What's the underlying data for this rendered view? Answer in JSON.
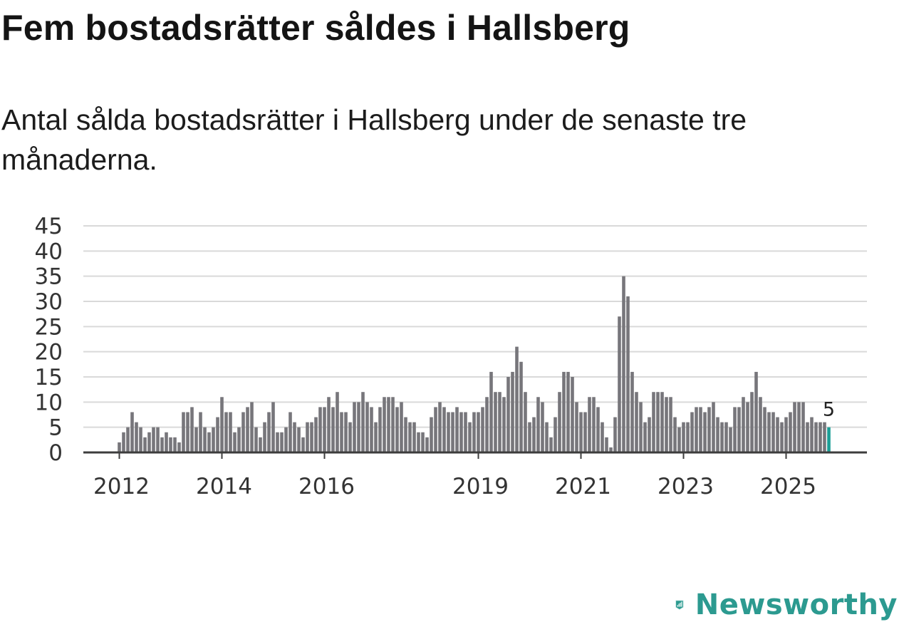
{
  "title": "Fem bostadsrätter såldes i Hallsberg",
  "subtitle": "Antal sålda bostadsrätter i Hallsberg under de senaste tre månaderna.",
  "brand": {
    "name": "Newsworthy",
    "color": "#2c9a90"
  },
  "colors": {
    "bar": "#77767b",
    "highlight": "#1a9e96",
    "grid": "#d9d9d9"
  },
  "chart_data": {
    "type": "bar",
    "title": "Fem bostadsrätter såldes i Hallsberg",
    "xlabel": "",
    "ylabel": "",
    "ylim": [
      0,
      45
    ],
    "yticks": [
      0,
      5,
      10,
      15,
      20,
      25,
      30,
      35,
      40,
      45
    ],
    "grid": true,
    "x_start": {
      "year": 2011,
      "month": 1
    },
    "xtick_labels": [
      {
        "label": "2012",
        "index": 12
      },
      {
        "label": "2014",
        "index": 36
      },
      {
        "label": "2016",
        "index": 60
      },
      {
        "label": "2019",
        "index": 96
      },
      {
        "label": "2021",
        "index": 120
      },
      {
        "label": "2023",
        "index": 144
      },
      {
        "label": "2025",
        "index": 168
      }
    ],
    "values": [
      0,
      0,
      0,
      0,
      0,
      0,
      0,
      0,
      0,
      0,
      0,
      0,
      2,
      4,
      5,
      8,
      6,
      5,
      3,
      4,
      5,
      5,
      3,
      4,
      3,
      3,
      2,
      8,
      8,
      9,
      5,
      8,
      5,
      4,
      5,
      7,
      11,
      8,
      8,
      4,
      5,
      8,
      9,
      10,
      5,
      3,
      6,
      8,
      10,
      4,
      4,
      5,
      8,
      6,
      5,
      3,
      6,
      6,
      7,
      9,
      9,
      11,
      9,
      12,
      8,
      8,
      6,
      10,
      10,
      12,
      10,
      9,
      6,
      9,
      11,
      11,
      11,
      9,
      10,
      7,
      6,
      6,
      4,
      4,
      3,
      7,
      9,
      10,
      9,
      8,
      8,
      9,
      8,
      8,
      6,
      8,
      8,
      9,
      11,
      16,
      12,
      12,
      11,
      15,
      16,
      21,
      18,
      12,
      6,
      7,
      11,
      10,
      6,
      3,
      7,
      12,
      16,
      16,
      15,
      10,
      8,
      8,
      11,
      11,
      9,
      6,
      3,
      1,
      7,
      27,
      35,
      31,
      16,
      12,
      10,
      6,
      7,
      12,
      12,
      12,
      11,
      11,
      7,
      5,
      6,
      6,
      8,
      9,
      9,
      8,
      9,
      10,
      7,
      6,
      6,
      5,
      9,
      9,
      11,
      10,
      12,
      16,
      11,
      9,
      8,
      8,
      7,
      6,
      7,
      8,
      10,
      10,
      10,
      6,
      7,
      6,
      6,
      6,
      5
    ],
    "highlight_last": true,
    "last_value_label": "5"
  }
}
